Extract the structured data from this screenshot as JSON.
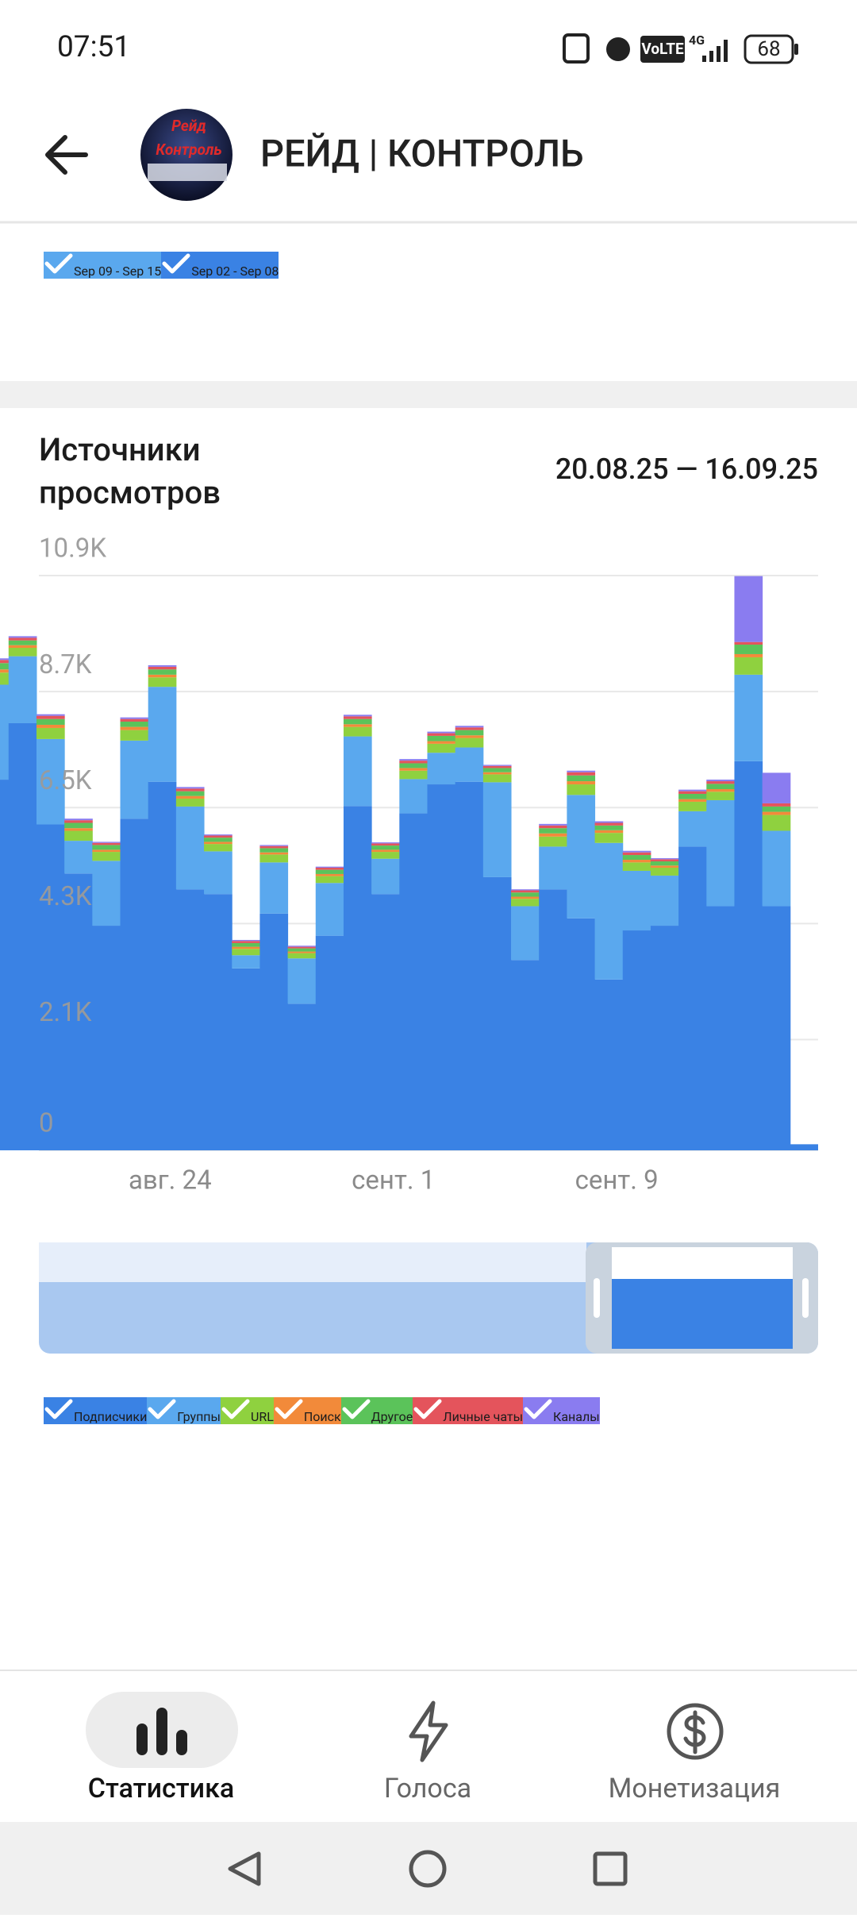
{
  "status_bar": {
    "time": "07:51",
    "volte": "VoLTE",
    "network": "4G",
    "battery": "68"
  },
  "header": {
    "title": "РЕЙД | КОНТРОЛЬ",
    "avatar_lines": [
      "Рейд",
      "Контроль"
    ]
  },
  "filters": [
    {
      "label": "Sep 09 - Sep 15",
      "color": "#5aa8ee"
    },
    {
      "label": "Sep 02 - Sep 08",
      "color": "#3a82e4"
    }
  ],
  "chart_data": {
    "type": "stacked_bar",
    "title": "Источники просмотров",
    "date_range": "20.08.25 — 16.09.25",
    "categories": [
      null,
      null,
      null,
      null,
      null,
      null,
      "авг. 24",
      null,
      null,
      null,
      null,
      null,
      null,
      null,
      "сент. 1",
      null,
      null,
      null,
      null,
      null,
      null,
      null,
      "сент. 9",
      null,
      null,
      null,
      null,
      null,
      null,
      null
    ],
    "ylim": [
      0,
      10900
    ],
    "yticks": [
      0,
      {
        "value": 2100,
        "label": "2.1K"
      },
      {
        "value": 4300,
        "label": "4.3K"
      },
      {
        "value": 6500,
        "label": "6.5K"
      },
      {
        "value": 8700,
        "label": "8.7K"
      },
      {
        "value": 10900,
        "label": "10.9K"
      }
    ],
    "grid": true,
    "series": [
      {
        "name": "Подписчики",
        "color": "#3a82e4",
        "values": [
          7030,
          8100,
          6180,
          5250,
          4260,
          6290,
          6990,
          4950,
          4860,
          3450,
          4490,
          2780,
          4070,
          6530,
          4860,
          6390,
          6940,
          6990,
          5180,
          3610,
          4950,
          4400,
          3240,
          4170,
          4260,
          5760,
          4630,
          7380,
          4630,
          115
        ]
      },
      {
        "name": "Группы",
        "color": "#5aa8ee",
        "values": [
          1800,
          1270,
          1620,
          620,
          1230,
          1480,
          1800,
          1570,
          810,
          250,
          970,
          860,
          1000,
          1320,
          670,
          650,
          600,
          650,
          1800,
          1020,
          810,
          2340,
          2590,
          1130,
          950,
          670,
          2010,
          1640,
          1430,
          0
        ]
      },
      {
        "name": "URL",
        "color": "#8fd13f",
        "values": [
          230,
          160,
          210,
          190,
          170,
          200,
          180,
          150,
          140,
          120,
          150,
          100,
          130,
          180,
          130,
          160,
          170,
          180,
          150,
          140,
          190,
          200,
          190,
          160,
          150,
          180,
          160,
          330,
          300,
          0
        ]
      },
      {
        "name": "Поиск",
        "color": "#f28a3a",
        "values": [
          60,
          50,
          60,
          50,
          40,
          60,
          50,
          50,
          40,
          40,
          40,
          30,
          40,
          50,
          40,
          50,
          50,
          50,
          40,
          40,
          60,
          60,
          50,
          50,
          40,
          50,
          50,
          60,
          60,
          0
        ]
      },
      {
        "name": "Другое",
        "color": "#5bc35a",
        "values": [
          120,
          90,
          110,
          100,
          90,
          100,
          100,
          90,
          80,
          70,
          80,
          60,
          80,
          100,
          80,
          90,
          100,
          100,
          80,
          80,
          100,
          110,
          90,
          90,
          80,
          100,
          100,
          180,
          100,
          0
        ]
      },
      {
        "name": "Личные чаты",
        "color": "#e4545c",
        "values": [
          60,
          50,
          60,
          50,
          40,
          50,
          50,
          50,
          40,
          40,
          40,
          30,
          40,
          50,
          40,
          50,
          50,
          50,
          40,
          40,
          50,
          60,
          50,
          50,
          40,
          50,
          50,
          50,
          60,
          0
        ]
      },
      {
        "name": "Каналы",
        "color": "#8a7cf0",
        "values": [
          30,
          30,
          30,
          30,
          20,
          30,
          30,
          30,
          20,
          20,
          20,
          20,
          20,
          30,
          20,
          30,
          30,
          30,
          20,
          20,
          30,
          30,
          30,
          30,
          20,
          30,
          30,
          1250,
          580,
          0
        ]
      }
    ]
  },
  "nav": {
    "items": [
      "Статистика",
      "Голоса",
      "Монетизация"
    ],
    "active": 0
  }
}
